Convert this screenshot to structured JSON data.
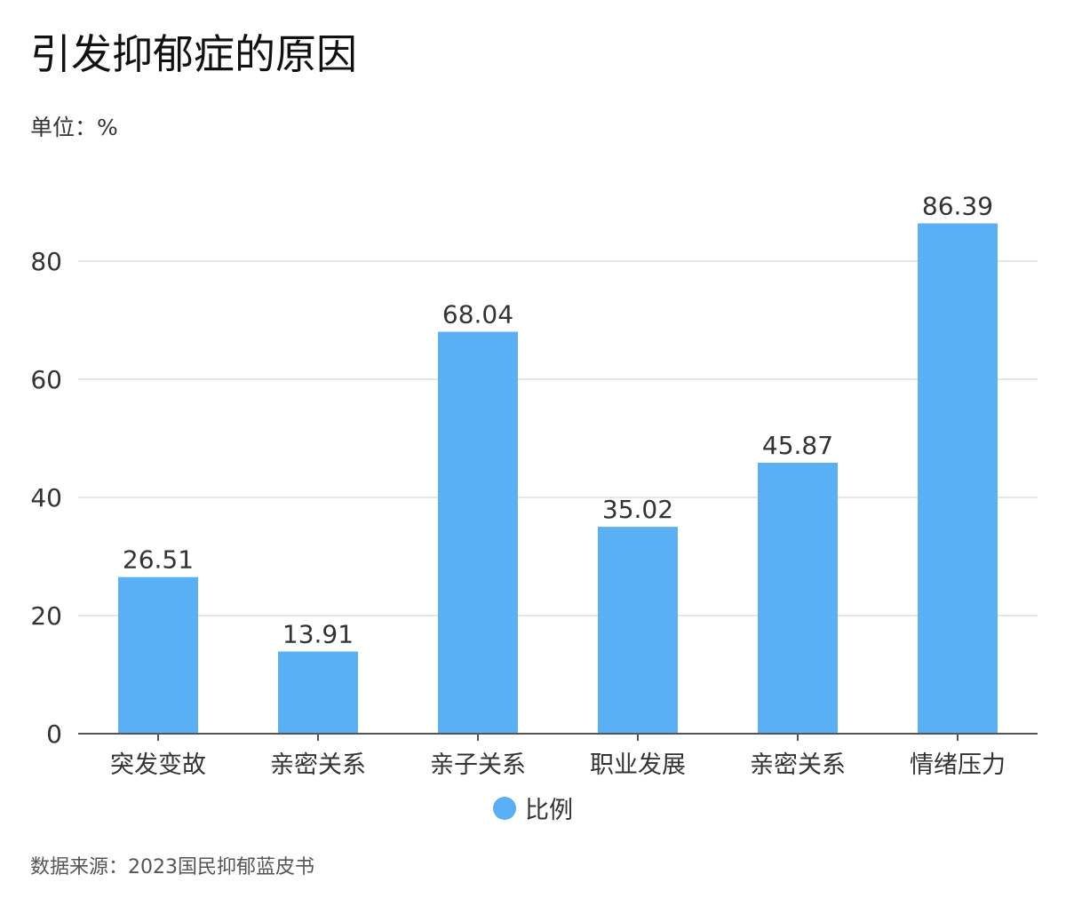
{
  "title": "引发抑郁症的原因",
  "unit_label": "单位：%",
  "source_label": "数据来源：2023国民抑郁蓝皮书",
  "colors": {
    "bar": "#5aaff5",
    "grid": "#dddddd",
    "axis": "#555555",
    "text": "#333333"
  },
  "chart_data": {
    "type": "bar",
    "categories": [
      "突发变故",
      "亲密关系",
      "亲子关系",
      "职业发展",
      "亲密关系",
      "情绪压力"
    ],
    "series": [
      {
        "name": "比例",
        "values": [
          26.51,
          13.91,
          68.04,
          35.02,
          45.87,
          86.39
        ]
      }
    ],
    "data_labels": [
      "26.51",
      "13.91",
      "68.04",
      "35.02",
      "45.87",
      "86.39"
    ],
    "y_ticks": [
      0,
      20,
      40,
      60,
      80
    ],
    "y_tick_labels": [
      "0",
      "20",
      "40",
      "60",
      "80"
    ],
    "ylim": [
      0,
      100
    ],
    "grid": true,
    "legend_position": "bottom-center"
  }
}
